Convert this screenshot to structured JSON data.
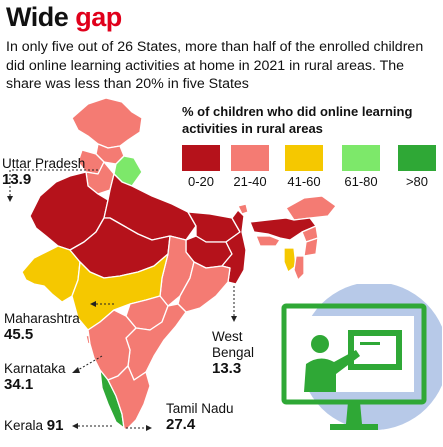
{
  "header": {
    "title_plain": "Wide ",
    "title_accent": "gap",
    "subtitle": "In only five out of 26 States, more than half of the enrolled children did online learning activities at home in 2021 in rural areas. The share was less than 20% in five States"
  },
  "legend": {
    "title": "% of children who did online learning activities in rural areas",
    "items": [
      {
        "label": "0-20",
        "color": "#b5121b"
      },
      {
        "label": "21-40",
        "color": "#f47b73"
      },
      {
        "label": "41-60",
        "color": "#f5c800"
      },
      {
        "label": "61-80",
        "color": "#7de86a"
      },
      {
        "label": ">80",
        "color": "#2fa836"
      }
    ]
  },
  "callouts": {
    "uttar_pradesh": {
      "name": "Uttar Pradesh",
      "value": "13.9"
    },
    "maharashtra": {
      "name": "Maharashtra",
      "value": "45.5"
    },
    "karnataka": {
      "name": "Karnataka",
      "value": "34.1"
    },
    "kerala": {
      "name": "Kerala",
      "value": "91"
    },
    "west_bengal": {
      "name": "West Bengal",
      "value": "13.3"
    },
    "tamil_nadu": {
      "name": "Tamil Nadu",
      "value": "27.4"
    }
  },
  "colors": {
    "accent": "#e0001b",
    "map_border": "#ffffff",
    "leader_line": "#222222",
    "illustration_circle": "#b7c9e8",
    "illustration_frame": "#2fa836"
  }
}
